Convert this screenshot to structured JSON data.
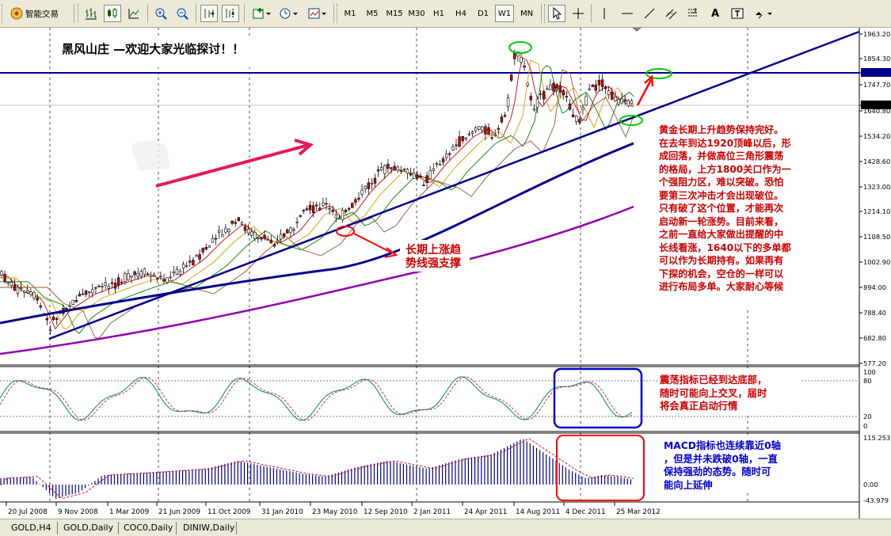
{
  "toolbar": {
    "autotrade_label": "智能交易",
    "timeframes": [
      "M1",
      "M5",
      "M15",
      "M30",
      "H1",
      "H4",
      "D1",
      "W1",
      "MN"
    ],
    "active_timeframe": "W1",
    "text_tool": "A"
  },
  "chart": {
    "title": "黑风山庄  —欢迎大家光临探讨！！",
    "support_label_line1": "长期上涨趋",
    "support_label_line2": "势线强支撑",
    "main_annotation": [
      "黄金长期上升趋势保持完好。",
      "在去年到达1920顶峰以后，形",
      "成回落，并做高位三角形震荡",
      "的格局，上方1800关口作为一",
      "个强阻力区，难以突破。恐怕",
      "要第三次冲击才会出现破位。",
      "只有破了这个位置，才能再次",
      "启动新一轮涨势。目前来看，",
      "之前一直给大家做出提醒的中",
      "长线看涨，1640以下的多单都",
      "可以作为长期持有。如果再有",
      "下探的机会，空仓的一样可以",
      "进行布局多单。大家耐心等候"
    ],
    "stoch_annotation": [
      "震荡指标已经到达底部，",
      "随时可能向上交叉，届时",
      "将会真正启动行情"
    ],
    "macd_annotation": [
      "MACD指标也连续靠近0轴",
      "，但是并未跌破0轴，一直",
      "保持强劲的态势。随时可",
      "能向上延伸"
    ],
    "price_labels": [
      "1963.20",
      "1854.30",
      "1797.93",
      "1747.70",
      "1662.40",
      "1640.80",
      "1534.20",
      "1428.60",
      "1323.00",
      "1214.10",
      "1108.50",
      "1002.90",
      "894.00",
      "788.40",
      "682.80",
      "577.20"
    ],
    "stoch_labels": [
      "100",
      "80",
      "20",
      "0"
    ],
    "macd_labels": [
      "115.253",
      "0.00",
      "-43.979"
    ],
    "date_labels": [
      "20 Jul 2008",
      "9 Nov 2008",
      "1 Mar 2009",
      "21 Jun 2009",
      "11 Oct 2009",
      "31 Jan 2010",
      "23 May 2010",
      "12 Sep 2010",
      "2 Jan 2011",
      "24 Apr 2011",
      "14 Aug 2011",
      "4 Dec 2011",
      "25 Mar 2012"
    ],
    "colors": {
      "accent_red": "#e8175d",
      "label_red": "#d00000",
      "annotation_red": "#cc0000",
      "annotation_blue": "#0000cc",
      "trendline": "#00008b",
      "ma_purple": "#9400b0"
    }
  },
  "tabs": [
    "GOLD,H4",
    "GOLD,Daily",
    "COC0,Daily",
    "DINIW,Daily"
  ]
}
